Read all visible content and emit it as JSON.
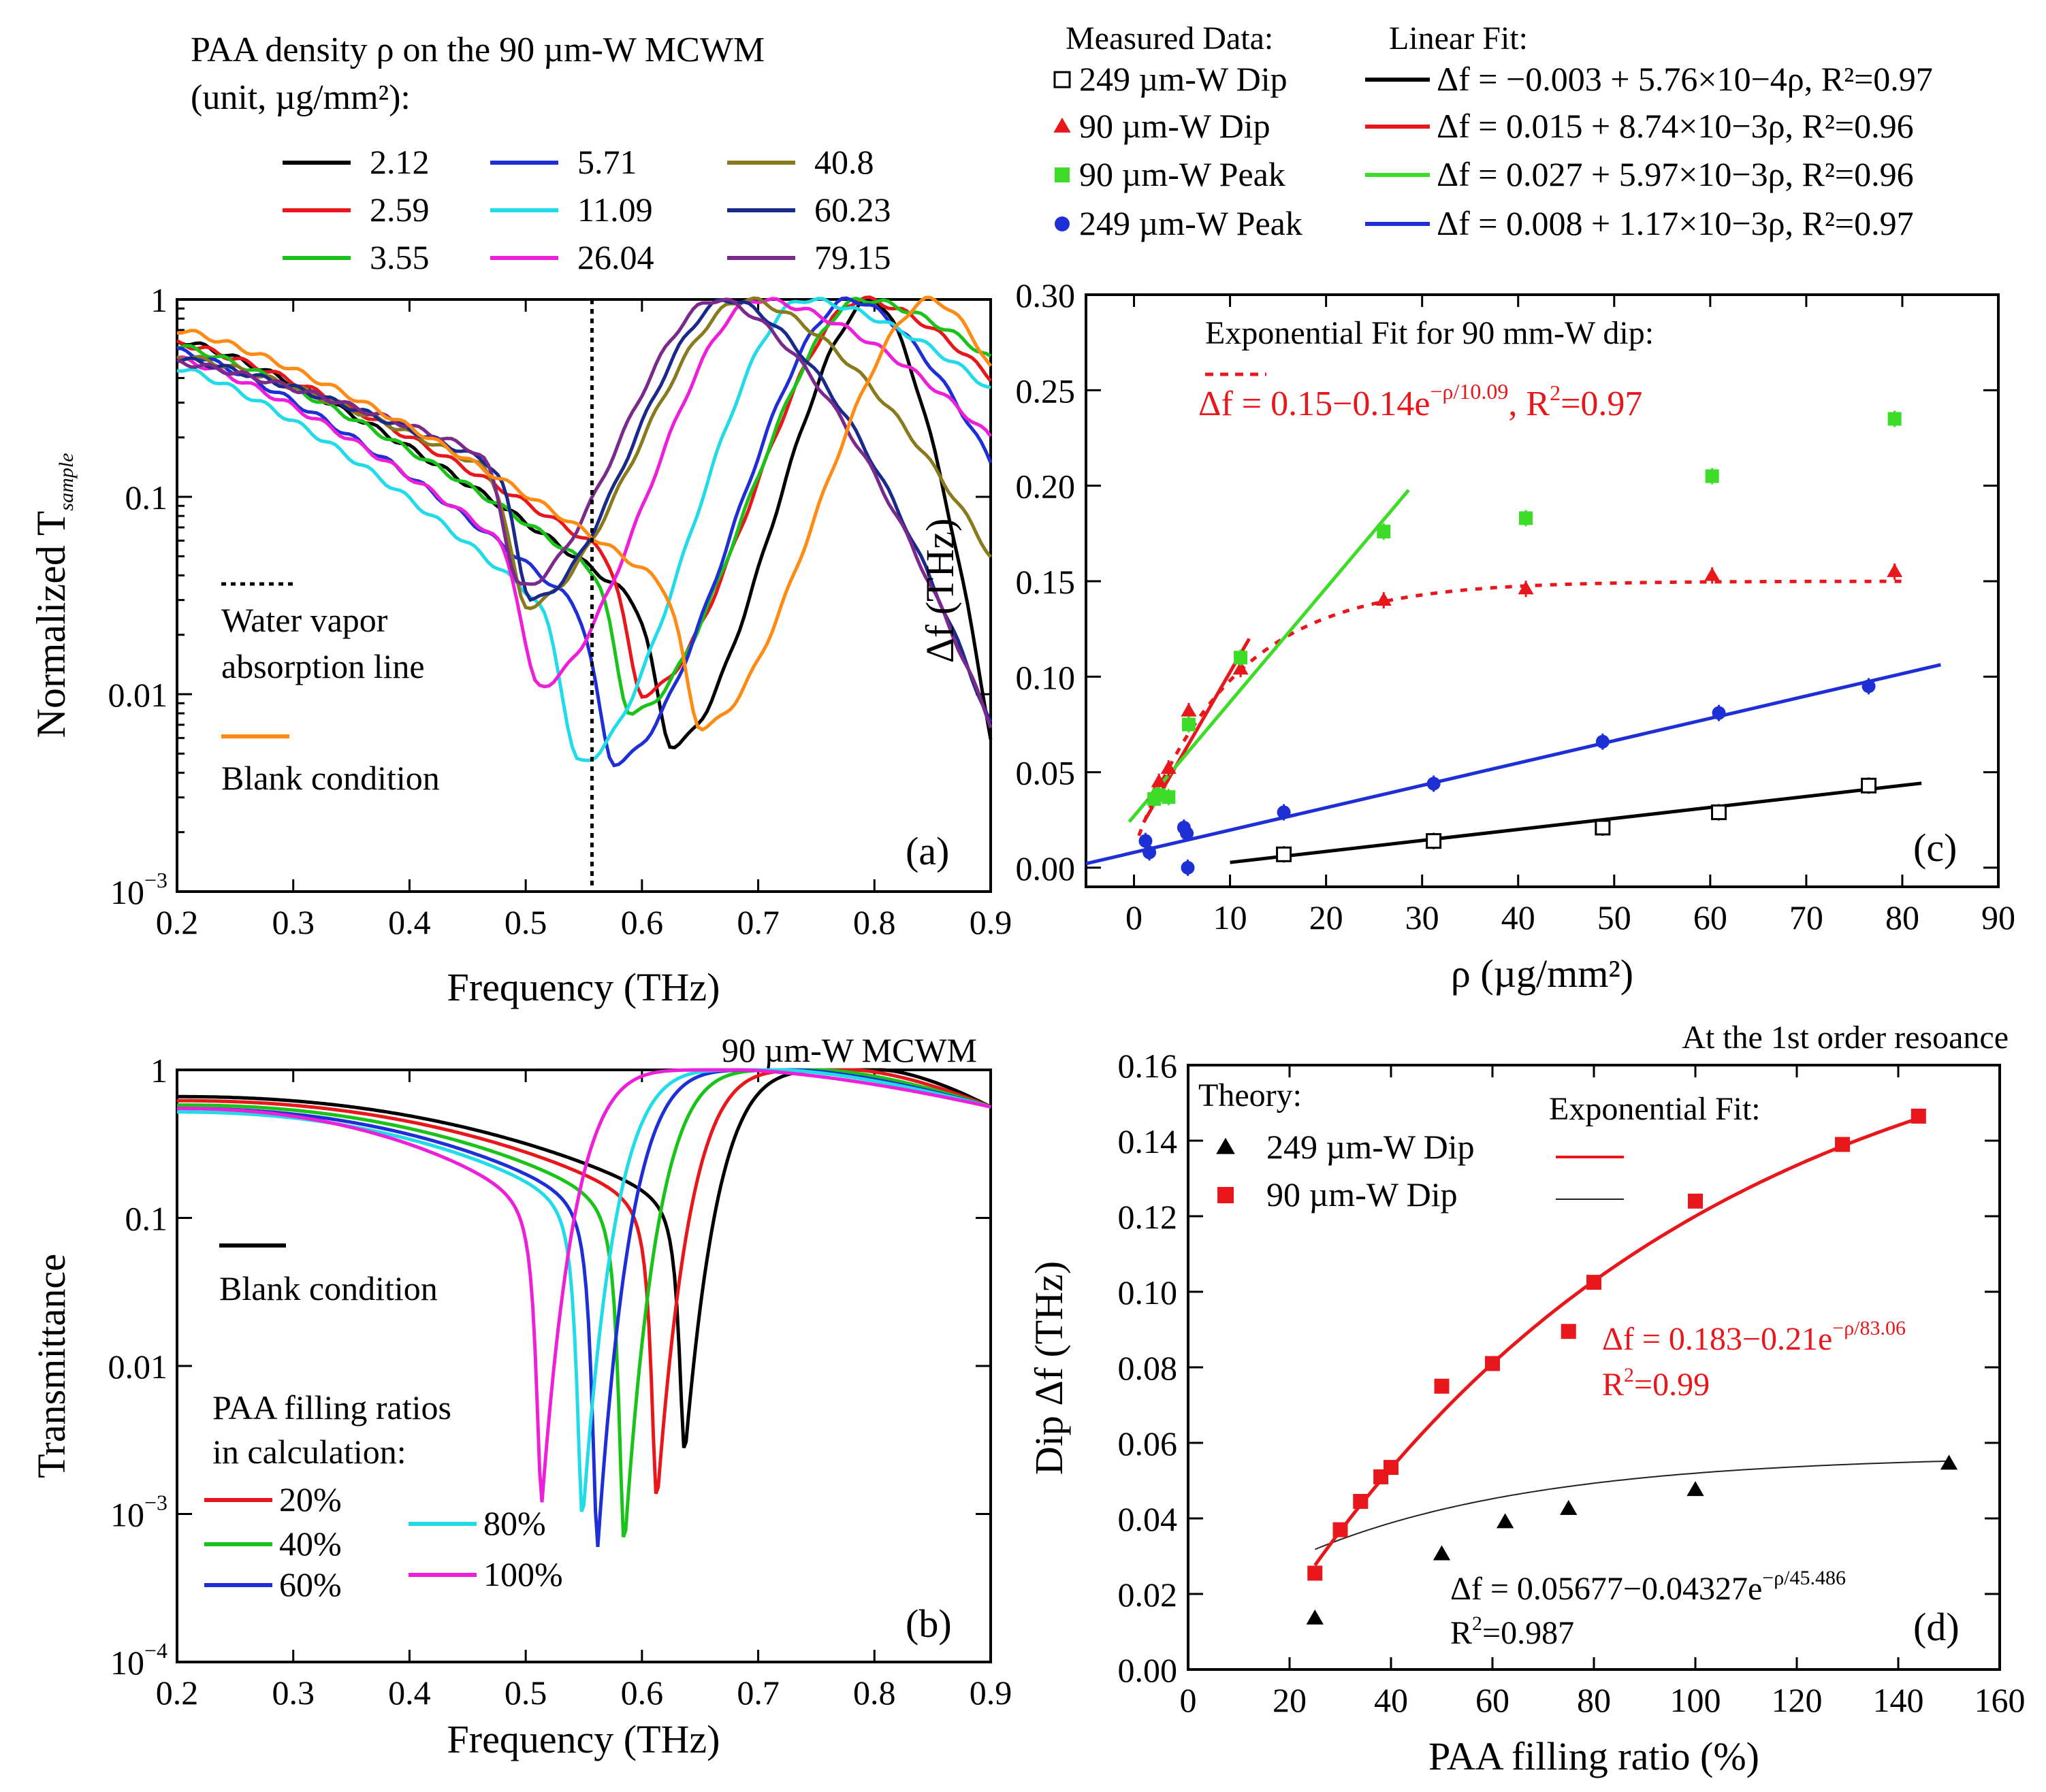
{
  "chart_data": [
    {
      "panel": "(a)",
      "type": "line",
      "legend_title_line1": "PAA density ρ on the 90 µm-W MCWM",
      "legend_title_line2": "(unit, µg/mm²):",
      "xlabel": "Frequency (THz)",
      "ylabel": "Normalized T_sample",
      "ylabel_main": "Normalized T",
      "ylabel_sub": "sample",
      "xlim": [
        0.2,
        0.9
      ],
      "ylim": [
        0.001,
        1
      ],
      "yscale": "log",
      "xticks": [
        "0.2",
        "0.3",
        "0.4",
        "0.5",
        "0.6",
        "0.7",
        "0.8",
        "0.9"
      ],
      "yticks": [
        "1",
        "0.1",
        "0.01",
        "10−3"
      ],
      "annotations": [
        "Water vapor",
        "absorption line",
        "Blank condition"
      ],
      "water_vapor_line_thz": 0.557,
      "series": [
        {
          "name": "2.12",
          "color": "#000000",
          "dip_f": 0.625,
          "dip_t": 0.0055,
          "peak_f": 0.8,
          "start_t": 0.62
        },
        {
          "name": "2.59",
          "color": "#e8171b",
          "dip_f": 0.6,
          "dip_t": 0.01,
          "peak_f": 0.79,
          "start_t": 0.6
        },
        {
          "name": "3.55",
          "color": "#19c319",
          "dip_f": 0.59,
          "dip_t": 0.008,
          "peak_f": 0.79,
          "start_t": 0.58
        },
        {
          "name": "5.71",
          "color": "#1f2fd6",
          "dip_f": 0.575,
          "dip_t": 0.0045,
          "peak_f": 0.78,
          "start_t": 0.55
        },
        {
          "name": "11.09",
          "color": "#22dbe8",
          "dip_f": 0.545,
          "dip_t": 0.0045,
          "peak_f": 0.74,
          "start_t": 0.45
        },
        {
          "name": "26.04",
          "color": "#ee1fd8",
          "dip_f": 0.51,
          "dip_t": 0.011,
          "peak_f": 0.7,
          "start_t": 0.5
        },
        {
          "name": "40.8",
          "color": "#8a7a1e",
          "dip_f": 0.5,
          "dip_t": 0.028,
          "peak_f": 0.69,
          "start_t": 0.52
        },
        {
          "name": "60.23",
          "color": "#1a2a8a",
          "dip_f": 0.505,
          "dip_t": 0.03,
          "peak_f": 0.675,
          "start_t": 0.5
        },
        {
          "name": "79.15",
          "color": "#7a2a8a",
          "dip_f": 0.495,
          "dip_t": 0.035,
          "peak_f": 0.665,
          "start_t": 0.48
        },
        {
          "name": "Blank condition",
          "color": "#ff8a14",
          "dip_f": 0.65,
          "dip_t": 0.0068,
          "peak_f": 0.85,
          "start_t": 0.7
        }
      ]
    },
    {
      "panel": "(b)",
      "type": "line",
      "title": "90 µm-W MCWM",
      "legend_title_line1": "PAA filling ratios",
      "legend_title_line2": "in calculation:",
      "xlabel": "Frequency (THz)",
      "ylabel": "Transmittance",
      "xlim": [
        0.2,
        0.9
      ],
      "ylim": [
        0.0001,
        1
      ],
      "yscale": "log",
      "xticks": [
        "0.2",
        "0.3",
        "0.4",
        "0.5",
        "0.6",
        "0.7",
        "0.8",
        "0.9"
      ],
      "yticks": [
        "1",
        "0.1",
        "0.01",
        "10−3",
        "10−4"
      ],
      "annotations": [
        "Blank condition"
      ],
      "series": [
        {
          "name": "Blank condition",
          "color": "#000000",
          "dip_f": 0.637,
          "dip_t": 0.0025,
          "start_t": 0.66
        },
        {
          "name": "20%",
          "color": "#e8171b",
          "dip_f": 0.613,
          "dip_t": 0.0012,
          "start_t": 0.62
        },
        {
          "name": "40%",
          "color": "#19c319",
          "dip_f": 0.585,
          "dip_t": 0.0006,
          "start_t": 0.58
        },
        {
          "name": "60%",
          "color": "#1f2fd6",
          "dip_f": 0.562,
          "dip_t": 0.0006,
          "start_t": 0.55
        },
        {
          "name": "80%",
          "color": "#22dbe8",
          "dip_f": 0.549,
          "dip_t": 0.0009,
          "start_t": 0.52
        },
        {
          "name": "100%",
          "color": "#ee1fd8",
          "dip_f": 0.514,
          "dip_t": 0.0012,
          "start_t": 0.55
        }
      ]
    },
    {
      "panel": "(c)",
      "type": "scatter",
      "legend_header_data": "Measured Data:",
      "legend_header_fit": "Linear Fit:",
      "xlabel": "ρ (µg/mm²)",
      "ylabel": "Δf (THz)",
      "xlim": [
        -5,
        90
      ],
      "ylim": [
        -0.01,
        0.3
      ],
      "xticks": [
        "0",
        "10",
        "20",
        "30",
        "40",
        "50",
        "60",
        "70",
        "80",
        "90"
      ],
      "yticks": [
        "0.00",
        "0.05",
        "0.10",
        "0.15",
        "0.20",
        "0.25",
        "0.30"
      ],
      "exp_fit_title": "Exponential Fit for 90 mm-W dip:",
      "exp_fit_eq": "Δf = 0.15−0.14e^(−ρ/10.09), R²=0.97",
      "exp_fit": {
        "a": 0.15,
        "b": 0.14,
        "tau": 10.09,
        "color": "#e8171b"
      },
      "series": [
        {
          "name": "249 µm-W Dip",
          "marker": "open-square",
          "color": "#000000",
          "fit_label": "Δf = −0.003 + 5.76×10−4ρ, R²=0.97",
          "fit": {
            "a": -0.003,
            "b": 0.000576,
            "x0": 10,
            "x1": 82
          },
          "x": [
            15.6,
            31.2,
            48.8,
            60.9,
            76.5
          ],
          "y": [
            0.007,
            0.014,
            0.021,
            0.029,
            0.043
          ]
        },
        {
          "name": "90 µm-W Dip",
          "marker": "filled-triangle",
          "color": "#e8171b",
          "fit_label": "Δf = 0.015 + 8.74×10−3ρ, R²=0.96",
          "fit": {
            "a": 0.015,
            "b": 0.00874,
            "x0": 1,
            "x1": 12
          },
          "x": [
            2.1,
            2.6,
            3.6,
            5.7,
            11.1,
            26.0,
            40.8,
            60.2,
            79.2
          ],
          "y": [
            0.038,
            0.045,
            0.052,
            0.082,
            0.104,
            0.14,
            0.146,
            0.153,
            0.155
          ]
        },
        {
          "name": "90 µm-W Peak",
          "marker": "filled-square",
          "color": "#3ddc28",
          "fit_label": "Δf = 0.027 + 5.97×10−3ρ, R²=0.96",
          "fit": {
            "a": 0.027,
            "b": 0.00597,
            "x0": -0.5,
            "x1": 28.6
          },
          "x": [
            2.1,
            2.6,
            3.6,
            5.7,
            11.1,
            26.0,
            40.8,
            60.2,
            79.2
          ],
          "y": [
            0.036,
            0.038,
            0.037,
            0.075,
            0.11,
            0.176,
            0.183,
            0.205,
            0.235
          ]
        },
        {
          "name": "249 µm-W Peak",
          "marker": "filled-circle",
          "color": "#1f2fd6",
          "fit_label": "Δf = 0.008 + 1.17×10−3ρ, R²=0.97",
          "fit": {
            "a": 0.008,
            "b": 0.00117,
            "x0": -5,
            "x1": 84
          },
          "x": [
            1.2,
            1.6,
            5.2,
            5.5,
            5.6,
            15.6,
            31.2,
            48.8,
            60.9,
            76.5
          ],
          "y": [
            0.014,
            0.008,
            0.021,
            0.018,
            0.0,
            0.029,
            0.044,
            0.066,
            0.081,
            0.095
          ]
        }
      ]
    },
    {
      "panel": "(d)",
      "type": "scatter",
      "title": "At the 1st order resoance",
      "legend_header_data": "Theory:",
      "legend_header_fit": "Exponential Fit:",
      "xlabel": "PAA filling ratio (%)",
      "ylabel": "Dip Δf (THz)",
      "xlim": [
        0,
        160
      ],
      "ylim": [
        0,
        0.16
      ],
      "xticks": [
        "0",
        "20",
        "40",
        "60",
        "80",
        "100",
        "120",
        "140",
        "160"
      ],
      "yticks": [
        "0.00",
        "0.02",
        "0.04",
        "0.06",
        "0.08",
        "0.10",
        "0.12",
        "0.14",
        "0.16"
      ],
      "fit_red_eq_line1": "Δf = 0.183−0.21e^(−ρ/83.06)",
      "fit_red_eq_line2": "R²=0.99",
      "fit_black_eq_line1": "Δf = 0.05677−0.04327e^(−ρ/45.486)",
      "fit_black_eq_line2": "R²=0.987",
      "series": [
        {
          "name": "249 µm-W Dip",
          "marker": "filled-triangle",
          "color": "#000000",
          "fit": {
            "a": 0.05677,
            "b": 0.04327,
            "tau": 45.486,
            "x0": 25,
            "x1": 150,
            "color": "#222222"
          },
          "x": [
            25,
            50,
            62.5,
            75,
            100,
            150
          ],
          "y": [
            0.0135,
            0.0305,
            0.039,
            0.0425,
            0.0475,
            0.0545
          ]
        },
        {
          "name": "90 µm-W Dip",
          "marker": "filled-square",
          "color": "#e8171b",
          "fit": {
            "a": 0.183,
            "b": 0.21,
            "tau": 83.06,
            "x0": 25,
            "x1": 144,
            "color": "#e8171b"
          },
          "x": [
            25,
            30,
            34,
            38,
            40,
            50,
            60,
            75,
            80,
            100,
            129,
            144
          ],
          "y": [
            0.0255,
            0.037,
            0.0445,
            0.051,
            0.0535,
            0.075,
            0.081,
            0.0895,
            0.1025,
            0.124,
            0.139,
            0.1465
          ]
        }
      ]
    }
  ]
}
